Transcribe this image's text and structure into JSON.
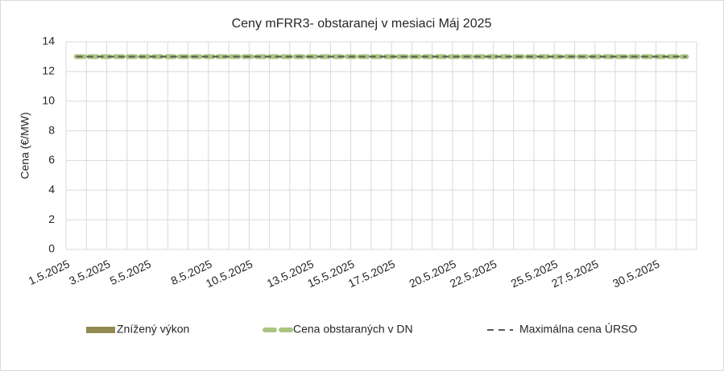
{
  "chart_data": {
    "type": "bar",
    "title": "Ceny mFRR3- obstaranej v mesiaci Máj 2025",
    "y_label": "Cena (€/MW)",
    "categories": [
      "1.5.2025",
      null,
      "3.5.2025",
      null,
      "5.5.2025",
      null,
      null,
      "8.5.2025",
      null,
      "10.5.2025",
      null,
      null,
      "13.5.2025",
      null,
      "15.5.2025",
      null,
      "17.5.2025",
      null,
      null,
      "20.5.2025",
      null,
      "22.5.2025",
      null,
      null,
      "25.5.2025",
      null,
      "27.5.2025",
      null,
      null,
      "30.5.2025",
      null
    ],
    "series": [
      {
        "name": "Znížený výkon",
        "type": "bar",
        "color": "#948a54",
        "values": [
          0,
          0,
          0,
          0,
          0,
          0,
          0,
          0,
          0,
          0,
          0,
          0,
          0,
          0,
          0,
          0,
          0,
          0,
          0,
          0,
          0,
          0,
          0,
          0,
          0,
          0,
          0,
          0,
          0,
          0,
          0
        ]
      },
      {
        "name": "Cena obstaraných v DN",
        "type": "line",
        "color": "#a9c47f",
        "values": [
          13,
          13,
          13,
          13,
          13,
          13,
          13,
          13,
          13,
          13,
          13,
          13,
          13,
          13,
          13,
          13,
          13,
          13,
          13,
          13,
          13,
          13,
          13,
          13,
          13,
          13,
          13,
          13,
          13,
          13,
          13
        ]
      },
      {
        "name": "Maximálna cena ÚRSO",
        "type": "line",
        "color": "#595959",
        "values": [
          13,
          13,
          13,
          13,
          13,
          13,
          13,
          13,
          13,
          13,
          13,
          13,
          13,
          13,
          13,
          13,
          13,
          13,
          13,
          13,
          13,
          13,
          13,
          13,
          13,
          13,
          13,
          13,
          13,
          13,
          13
        ]
      }
    ],
    "ylim": [
      0,
      14
    ],
    "yticks": [
      0,
      2,
      4,
      6,
      8,
      10,
      12,
      14
    ],
    "grid": true,
    "legend": "bottom"
  }
}
